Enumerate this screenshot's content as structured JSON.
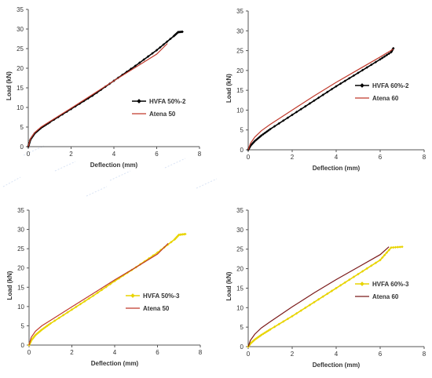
{
  "colors": {
    "hvfa_black": "#000000",
    "hvfa_yellow": "#e8d400",
    "atena_red": "#c0392b",
    "axis": "#555555",
    "bg_stripe": "#c9d8f0"
  },
  "chart_data": [
    {
      "type": "line",
      "xlabel": "Deflection (mm)",
      "ylabel": "Load (kN)",
      "xlim": [
        0,
        8
      ],
      "ylim": [
        0,
        35
      ],
      "xticks": [
        "0",
        "2",
        "4",
        "6",
        "8"
      ],
      "yticks": [
        "0",
        "5",
        "10",
        "15",
        "20",
        "25",
        "30",
        "35"
      ],
      "grid": false,
      "legend_position": "right-center",
      "series": [
        {
          "name": "HVFA 50%-2",
          "color": "#000000",
          "marker": "diamond",
          "x": [
            0,
            0.1,
            0.3,
            0.6,
            1.0,
            2.0,
            3.0,
            4.0,
            5.0,
            6.0,
            6.8,
            7.0,
            7.2
          ],
          "y": [
            0,
            1.8,
            3.4,
            4.8,
            6.2,
            9.6,
            13.0,
            16.8,
            20.6,
            24.6,
            28.2,
            29.2,
            29.3
          ]
        },
        {
          "name": "Atena 50",
          "color": "#c0392b",
          "marker": "none",
          "x": [
            0,
            0.1,
            0.3,
            0.6,
            1.0,
            2.0,
            3.0,
            4.0,
            5.0,
            6.0,
            6.5
          ],
          "y": [
            0,
            2.0,
            3.6,
            5.0,
            6.4,
            9.8,
            13.3,
            16.8,
            20.2,
            23.6,
            26.3
          ]
        }
      ]
    },
    {
      "type": "line",
      "xlabel": "Deflection (mm)",
      "ylabel": "Load (kN)",
      "xlim": [
        0,
        8
      ],
      "ylim": [
        0,
        35
      ],
      "xticks": [
        "0",
        "2",
        "4",
        "6",
        "8"
      ],
      "yticks": [
        "0",
        "5",
        "10",
        "15",
        "20",
        "25",
        "30",
        "35"
      ],
      "grid": false,
      "legend_position": "right-center",
      "series": [
        {
          "name": "HVFA 60%-2",
          "color": "#000000",
          "marker": "diamond",
          "x": [
            0,
            0.1,
            0.3,
            0.6,
            1.0,
            2.0,
            3.0,
            4.0,
            5.0,
            6.0,
            6.5,
            6.6
          ],
          "y": [
            0,
            1.0,
            2.2,
            3.6,
            5.2,
            8.8,
            12.4,
            16.0,
            19.4,
            22.8,
            24.6,
            25.6
          ]
        },
        {
          "name": "Atena 60",
          "color": "#c0392b",
          "marker": "none",
          "x": [
            0,
            0.1,
            0.3,
            0.6,
            1.0,
            2.0,
            3.0,
            4.0,
            5.0,
            6.0,
            6.6
          ],
          "y": [
            0,
            1.6,
            3.2,
            4.8,
            6.4,
            10.0,
            13.6,
            17.0,
            20.2,
            23.4,
            25.4
          ]
        }
      ]
    },
    {
      "type": "line",
      "xlabel": "Deflection (mm)",
      "ylabel": "Load (kN)",
      "xlim": [
        0,
        8
      ],
      "ylim": [
        0,
        35
      ],
      "xticks": [
        "0",
        "2",
        "4",
        "6",
        "8"
      ],
      "yticks": [
        "0",
        "5",
        "10",
        "15",
        "20",
        "25",
        "30",
        "35"
      ],
      "grid": false,
      "legend_position": "right-center",
      "series": [
        {
          "name": "HVFA 50%-3",
          "color": "#e8d400",
          "marker": "diamond",
          "x": [
            0,
            0.1,
            0.3,
            0.6,
            1.0,
            2.0,
            3.0,
            4.0,
            5.0,
            6.0,
            6.8,
            7.0,
            7.3
          ],
          "y": [
            0,
            1.2,
            2.6,
            4.0,
            5.6,
            9.2,
            12.8,
            16.6,
            20.2,
            24.0,
            27.4,
            28.6,
            28.8
          ]
        },
        {
          "name": "Atena 50",
          "color": "#c0392b",
          "marker": "none",
          "x": [
            0,
            0.1,
            0.3,
            0.6,
            1.0,
            2.0,
            3.0,
            4.0,
            5.0,
            6.0,
            6.5
          ],
          "y": [
            0,
            2.0,
            3.6,
            5.0,
            6.4,
            9.9,
            13.4,
            16.9,
            20.2,
            23.6,
            26.4
          ]
        }
      ]
    },
    {
      "type": "line",
      "xlabel": "Deflection (mm)",
      "ylabel": "Load (kN)",
      "xlim": [
        0,
        8
      ],
      "ylim": [
        0,
        35
      ],
      "xticks": [
        "0",
        "2",
        "4",
        "6",
        "8"
      ],
      "yticks": [
        "0",
        "5",
        "10",
        "15",
        "20",
        "25",
        "30",
        "35"
      ],
      "grid": false,
      "legend_position": "right-center",
      "series": [
        {
          "name": "HVFA 60%-3",
          "color": "#e8d400",
          "marker": "diamond",
          "x": [
            0,
            0.1,
            0.3,
            0.6,
            1.0,
            2.0,
            3.0,
            4.0,
            5.0,
            6.0,
            6.5,
            7.0
          ],
          "y": [
            0,
            0.8,
            1.8,
            3.0,
            4.4,
            7.8,
            11.4,
            15.0,
            18.6,
            22.2,
            25.4,
            25.6
          ]
        },
        {
          "name": "Atena 60",
          "color": "#7b1a1a",
          "marker": "none",
          "x": [
            0,
            0.1,
            0.3,
            0.6,
            1.0,
            2.0,
            3.0,
            4.0,
            5.0,
            6.0,
            6.4
          ],
          "y": [
            0,
            1.6,
            3.2,
            4.8,
            6.4,
            10.2,
            13.8,
            17.2,
            20.4,
            23.6,
            25.6
          ]
        }
      ]
    }
  ]
}
